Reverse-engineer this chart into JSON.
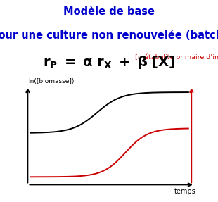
{
  "title_line1": "Modèle de base",
  "title_line2": "pour une culture non renouvelée (batch)",
  "title_color": "#0000CC",
  "title_fontsize": 10.5,
  "ylabel": "ln([biomasse])",
  "xlabel": "temps",
  "red_label": "[métabolite primaire d’intérêt]",
  "red_label_color": "#CC0000",
  "formula": "$\\mathbf{r_P\\ =\\ \\alpha\\ r_X\\ +\\ \\beta\\ [X]}$",
  "formula_fontsize": 14,
  "bg_color": "#FFFFFF",
  "black_curve_color": "#000000",
  "red_curve_color": "#CC0000"
}
